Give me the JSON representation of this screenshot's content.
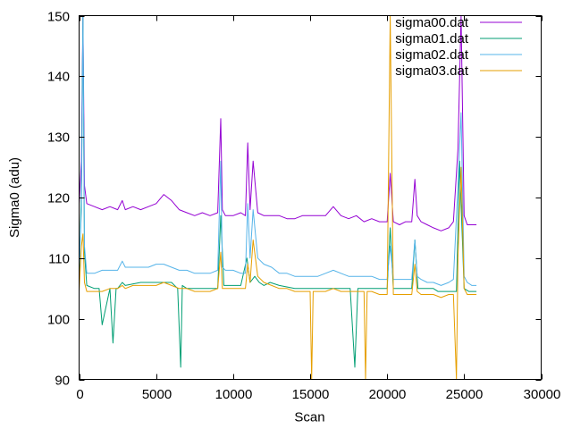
{
  "chart_data": {
    "type": "line",
    "title": "",
    "xlabel": "Scan",
    "ylabel": "Sigma0 (adu)",
    "xlim": [
      0,
      30000
    ],
    "ylim": [
      90,
      150
    ],
    "xticks": [
      0,
      5000,
      10000,
      15000,
      20000,
      25000,
      30000
    ],
    "yticks": [
      90,
      100,
      110,
      120,
      130,
      140,
      150
    ],
    "grid": false,
    "legend_position": "top-right",
    "series": [
      {
        "name": "sigma00.dat",
        "color": "#9400d3",
        "x": [
          0,
          150,
          250,
          350,
          500,
          1000,
          1500,
          2000,
          2500,
          2800,
          3000,
          3500,
          4000,
          4500,
          5000,
          5500,
          6000,
          6500,
          7000,
          7500,
          8000,
          8500,
          9000,
          9200,
          9300,
          9500,
          10000,
          10500,
          10800,
          10950,
          11100,
          11300,
          11600,
          12000,
          12500,
          13000,
          13500,
          14000,
          14500,
          15000,
          15500,
          16000,
          16500,
          17000,
          17500,
          18000,
          18500,
          19000,
          19500,
          20000,
          20200,
          20400,
          20800,
          21200,
          21600,
          21800,
          21950,
          22200,
          22600,
          23000,
          23500,
          24000,
          24300,
          24600,
          24800,
          25000,
          25200,
          25500,
          25800
        ],
        "y": [
          119,
          126,
          150,
          122,
          119,
          118.5,
          118,
          118.5,
          118,
          119.5,
          118,
          118.5,
          118,
          118.5,
          119,
          120.5,
          119.5,
          118,
          117.5,
          117,
          117.5,
          117,
          117.5,
          133,
          118,
          117,
          117,
          117.5,
          117,
          129,
          118,
          126,
          117.5,
          117,
          117,
          117,
          116.5,
          116.5,
          117,
          117,
          117,
          117,
          118.5,
          117,
          116.5,
          117,
          116,
          116.5,
          116,
          116,
          124,
          116,
          115.5,
          116,
          116,
          123,
          117,
          116,
          115.5,
          115,
          114.5,
          115,
          116,
          128,
          150,
          117,
          115.5,
          115.5,
          115.5
        ]
      },
      {
        "name": "sigma01.dat",
        "color": "#009e73",
        "x": [
          0,
          150,
          250,
          350,
          500,
          1000,
          1300,
          1500,
          2000,
          2200,
          2400,
          2500,
          2800,
          3000,
          4000,
          5000,
          6000,
          6400,
          6600,
          6700,
          7000,
          8000,
          9000,
          9200,
          9400,
          10000,
          10500,
          10900,
          11100,
          11400,
          11700,
          12000,
          12400,
          13000,
          14000,
          15000,
          15500,
          16000,
          17000,
          17600,
          17900,
          18100,
          18400,
          19000,
          20000,
          20200,
          20400,
          21000,
          21600,
          21800,
          22000,
          22400,
          23000,
          23300,
          24000,
          24500,
          24700,
          25000,
          25300,
          25800
        ],
        "y": [
          106,
          121,
          150,
          111,
          105.5,
          105,
          105,
          99,
          105,
          96,
          105,
          105,
          106,
          105.5,
          106,
          106,
          106,
          105,
          92,
          105.5,
          105,
          105,
          105,
          117,
          105.5,
          105.5,
          105.5,
          110,
          106,
          107,
          106,
          105.5,
          106,
          105.5,
          105,
          105,
          105,
          105,
          105,
          105,
          92,
          105,
          105,
          105,
          105,
          115,
          105,
          105,
          105,
          113,
          105,
          105,
          105,
          104.5,
          104.5,
          104.5,
          126,
          105,
          104.5,
          104.5
        ]
      },
      {
        "name": "sigma02.dat",
        "color": "#56b4e9",
        "x": [
          0,
          150,
          250,
          350,
          500,
          1000,
          1500,
          2000,
          2500,
          2800,
          3000,
          3500,
          4000,
          4500,
          5000,
          5500,
          6000,
          6500,
          7000,
          7500,
          8000,
          8500,
          9000,
          9200,
          9300,
          9500,
          10000,
          10500,
          10800,
          10950,
          11100,
          11300,
          11600,
          12000,
          12500,
          13000,
          13500,
          14000,
          14500,
          15000,
          15500,
          16000,
          16500,
          17000,
          17500,
          18000,
          18500,
          19000,
          19500,
          20000,
          20200,
          20400,
          20800,
          21200,
          21600,
          21800,
          21950,
          22200,
          22600,
          23000,
          23500,
          24000,
          24300,
          24600,
          24800,
          25000,
          25200,
          25500,
          25800
        ],
        "y": [
          108,
          118,
          150,
          112,
          107.5,
          107.5,
          108,
          108,
          108,
          109.5,
          108.5,
          108.5,
          108.5,
          108.5,
          109,
          109,
          108.5,
          108,
          108,
          107.5,
          107.5,
          107.5,
          108,
          126,
          108.5,
          108,
          108,
          107.5,
          107.5,
          119,
          110,
          118,
          110,
          109,
          108.5,
          107.5,
          107.5,
          107,
          107,
          107,
          107,
          107.5,
          108,
          107.5,
          107,
          107,
          107,
          107,
          106.5,
          106.5,
          112,
          106.5,
          106.5,
          106.5,
          106.5,
          113,
          107,
          106.5,
          106,
          106,
          105.5,
          106,
          106.5,
          122,
          134,
          107,
          106,
          105.5,
          105.5
        ]
      },
      {
        "name": "sigma03.dat",
        "color": "#e69f00",
        "x": [
          0,
          150,
          250,
          350,
          500,
          1000,
          1500,
          2000,
          2500,
          2800,
          3000,
          3500,
          4000,
          4500,
          5000,
          5500,
          6000,
          6500,
          7000,
          7500,
          8000,
          8500,
          9000,
          9200,
          9300,
          9500,
          10000,
          10500,
          10800,
          10950,
          11100,
          11300,
          11600,
          12000,
          12500,
          13000,
          13500,
          14000,
          14500,
          15000,
          15100,
          15200,
          15500,
          16000,
          16500,
          17000,
          17500,
          18000,
          18500,
          18600,
          18700,
          19000,
          19500,
          20000,
          20200,
          20400,
          20800,
          21200,
          21600,
          21800,
          21950,
          22200,
          22600,
          23000,
          23500,
          24000,
          24300,
          24500,
          24600,
          24800,
          25000,
          25200,
          25500,
          25800
        ],
        "y": [
          104.5,
          112,
          114,
          106,
          104.5,
          104.5,
          104.5,
          105,
          105,
          105.5,
          105,
          105.5,
          105.5,
          105.5,
          105.5,
          106,
          105.5,
          105,
          105,
          104.5,
          104.5,
          104.5,
          105,
          111,
          105,
          105,
          105,
          105,
          105,
          109,
          106,
          113,
          107,
          106,
          105.5,
          105,
          105,
          104.5,
          104.5,
          104.5,
          90,
          104.5,
          104.5,
          104.5,
          105,
          104.5,
          104.5,
          104.5,
          104.5,
          90,
          104.5,
          104.5,
          104,
          104,
          150,
          104,
          104,
          104,
          104,
          109,
          104.5,
          104,
          104,
          104,
          103.5,
          104,
          104,
          90,
          110,
          125,
          105,
          104,
          104,
          104
        ]
      }
    ]
  }
}
